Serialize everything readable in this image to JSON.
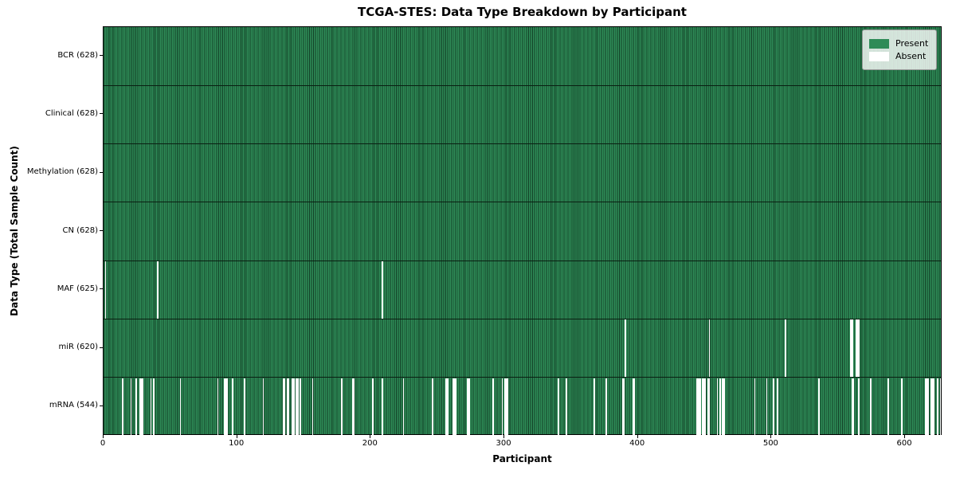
{
  "chart_data": {
    "type": "heatmap",
    "title": "TCGA-STES: Data Type Breakdown by Participant",
    "xlabel": "Participant",
    "ylabel": "Data Type (Total Sample Count)",
    "n_participants": 628,
    "xlim": [
      0,
      628
    ],
    "x_ticks": [
      0,
      100,
      200,
      300,
      400,
      500,
      600
    ],
    "grid": false,
    "legend_position": "upper right",
    "colors": {
      "present": "#2e8b57",
      "present_edge": "#123f26",
      "absent": "#ffffff",
      "separator": "#0a1f12"
    },
    "legend": [
      {
        "label": "Present",
        "color": "#2e8b57"
      },
      {
        "label": "Absent",
        "color": "#ffffff"
      }
    ],
    "rows": [
      {
        "label": "BCR",
        "count": 628,
        "display": "BCR (628)",
        "absent": []
      },
      {
        "label": "Clinical",
        "count": 628,
        "display": "Clinical (628)",
        "absent": []
      },
      {
        "label": "Methylation",
        "count": 628,
        "display": "Methylation (628)",
        "absent": []
      },
      {
        "label": "CN",
        "count": 628,
        "display": "CN (628)",
        "absent": []
      },
      {
        "label": "MAF",
        "count": 625,
        "display": "MAF (625)",
        "absent": [
          1,
          40,
          208
        ]
      },
      {
        "label": "miR",
        "count": 620,
        "display": "miR (620)",
        "absent": [
          390,
          453,
          510,
          559,
          560,
          563,
          564,
          565
        ]
      },
      {
        "label": "mRNA",
        "count": 544,
        "display": "mRNA (544)",
        "absent": [
          14,
          20,
          24,
          27,
          28,
          29,
          35,
          37,
          57,
          85,
          90,
          91,
          92,
          96,
          105,
          119,
          134,
          135,
          137,
          138,
          141,
          142,
          144,
          145,
          147,
          156,
          178,
          186,
          187,
          201,
          208,
          224,
          246,
          256,
          257,
          261,
          262,
          263,
          272,
          273,
          291,
          298,
          300,
          301,
          302,
          340,
          346,
          367,
          376,
          388,
          389,
          396,
          397,
          444,
          445,
          446,
          448,
          449,
          450,
          452,
          453,
          459,
          461,
          463,
          464,
          487,
          496,
          501,
          504,
          535,
          560,
          561,
          565,
          574,
          587,
          597,
          615,
          616,
          617,
          619,
          620,
          621,
          624,
          626
        ]
      }
    ]
  }
}
